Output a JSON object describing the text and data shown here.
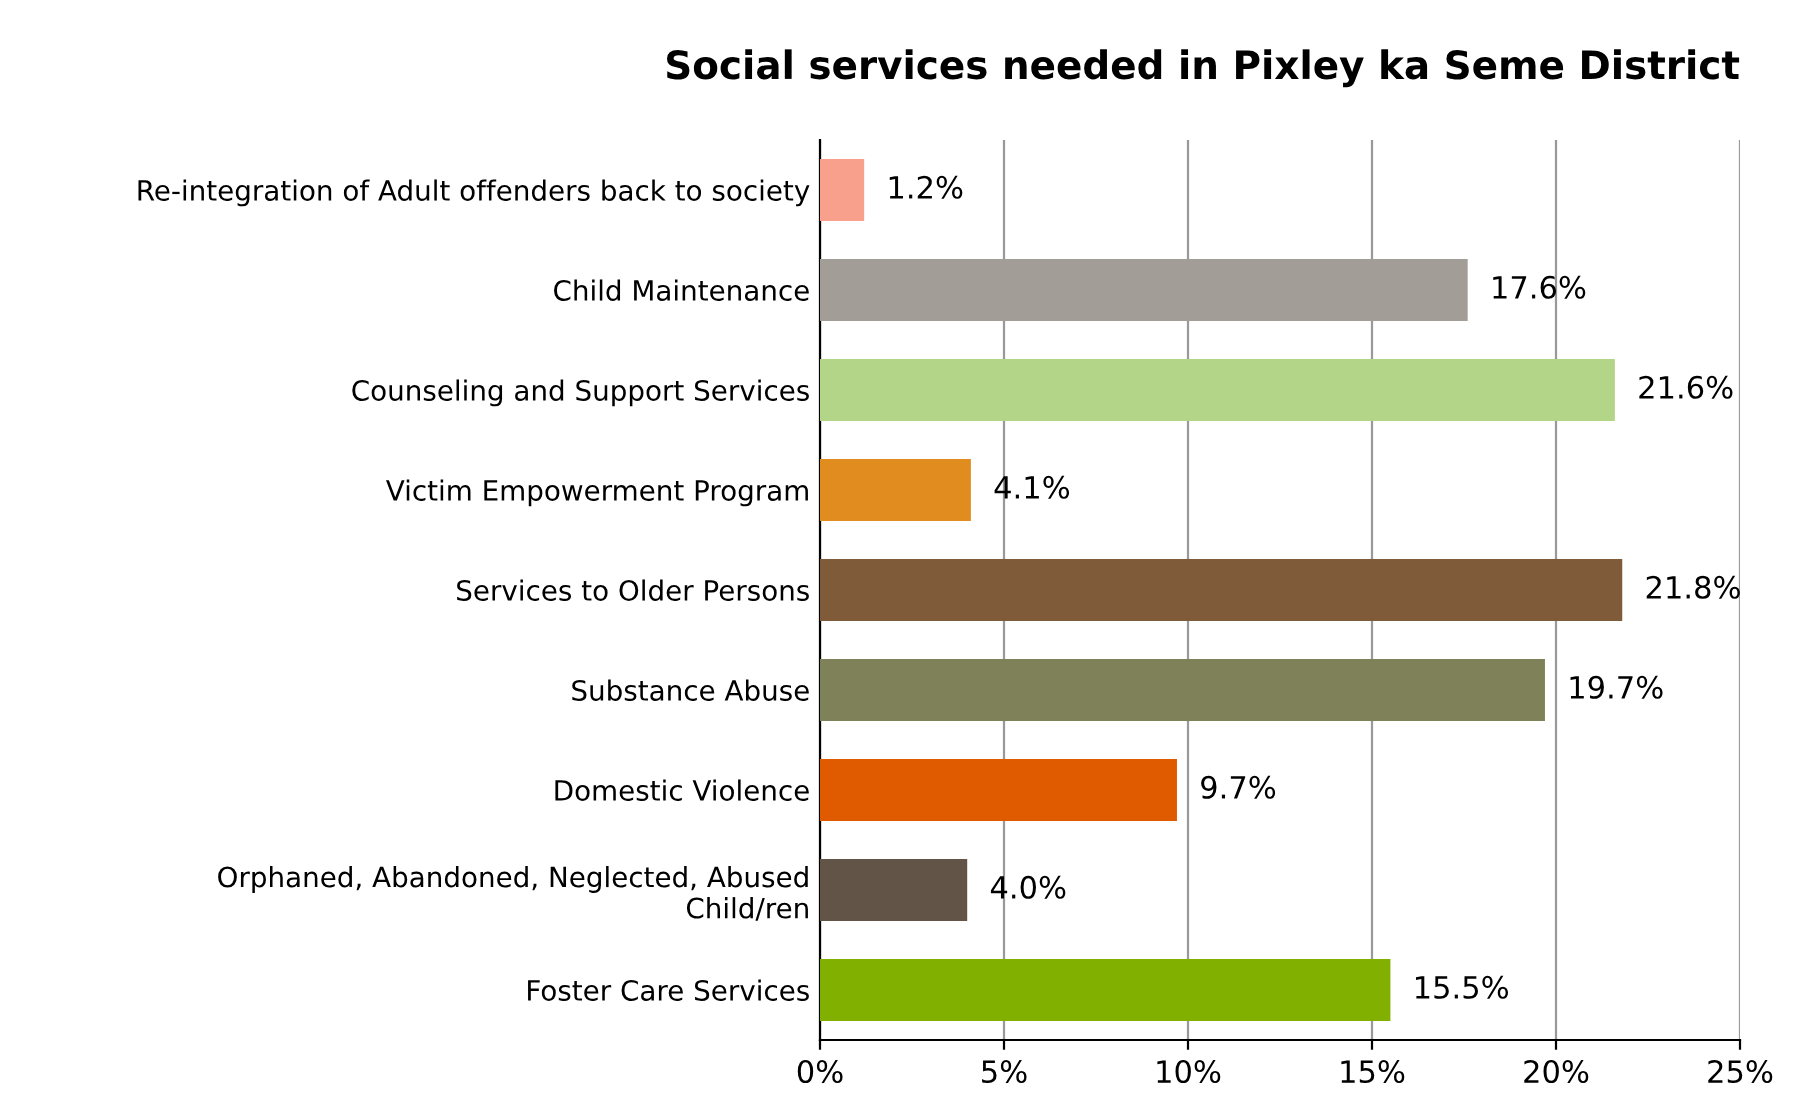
{
  "chart_data": {
    "type": "bar",
    "orientation": "horizontal",
    "title": "Social services needed in Pixley ka Seme District",
    "categories": [
      "Re-integration of Adult offenders back to society",
      "Child Maintenance",
      "Counseling and Support Services",
      "Victim Empowerment Program",
      "Services to Older Persons",
      "Substance Abuse",
      "Domestic Violence",
      "Orphaned, Abandoned, Neglected, Abused\nChild/ren",
      "Foster Care Services"
    ],
    "values": [
      1.2,
      17.6,
      21.6,
      4.1,
      21.8,
      19.7,
      9.7,
      4.0,
      15.5
    ],
    "value_labels": [
      "1.2%",
      "17.6%",
      "21.6%",
      "4.1%",
      "21.8%",
      "19.7%",
      "9.7%",
      "4.0%",
      "15.5%"
    ],
    "colors": [
      "#f9a08c",
      "#a29d96",
      "#b3d587",
      "#e08c1e",
      "#7f5b3a",
      "#7f8258",
      "#e05a00",
      "#625548",
      "#82b000"
    ],
    "xlim": [
      0,
      25
    ],
    "xticks": [
      {
        "value": 0,
        "label": "0%"
      },
      {
        "value": 5,
        "label": "5%"
      },
      {
        "value": 10,
        "label": "10%"
      },
      {
        "value": 15,
        "label": "15%"
      },
      {
        "value": 20,
        "label": "20%"
      },
      {
        "value": 25,
        "label": "25%"
      }
    ],
    "grid": "x",
    "legend": false
  }
}
